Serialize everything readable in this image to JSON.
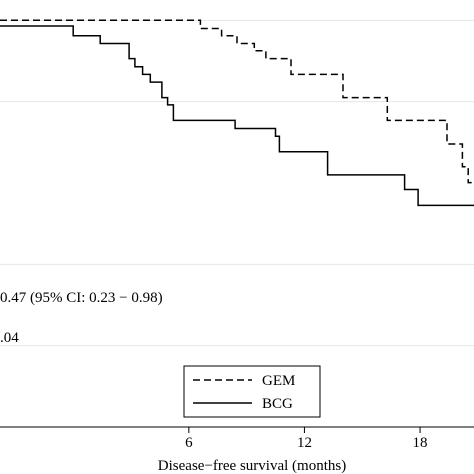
{
  "chart_data": {
    "type": "line",
    "subtype": "kaplan-meier step plot",
    "title": "",
    "xlabel": "Disease−free survival (months)",
    "ylabel": "",
    "xlim": [
      -3.8,
      20.8
    ],
    "ylim": [
      0.0,
      1.05
    ],
    "x_ticks": [
      6,
      12,
      18
    ],
    "y_gridlines": [
      0.2,
      0.4,
      0.8,
      1.0
    ],
    "grid": true,
    "legend_position": "bottom-right",
    "series": [
      {
        "name": "GEM",
        "line_style": "dashed",
        "color": "#000000",
        "steps": [
          [
            -3.8,
            1.0
          ],
          [
            6.6,
            1.0
          ],
          [
            6.6,
            0.98
          ],
          [
            7.7,
            0.98
          ],
          [
            7.7,
            0.962
          ],
          [
            8.5,
            0.962
          ],
          [
            8.5,
            0.943
          ],
          [
            9.4,
            0.943
          ],
          [
            9.4,
            0.925
          ],
          [
            10.0,
            0.925
          ],
          [
            10.0,
            0.906
          ],
          [
            11.3,
            0.906
          ],
          [
            11.3,
            0.867
          ],
          [
            14.0,
            0.867
          ],
          [
            14.0,
            0.81
          ],
          [
            16.3,
            0.81
          ],
          [
            16.3,
            0.754
          ],
          [
            19.4,
            0.754
          ],
          [
            19.4,
            0.696
          ],
          [
            20.2,
            0.696
          ],
          [
            20.2,
            0.64
          ],
          [
            20.5,
            0.64
          ],
          [
            20.5,
            0.601
          ],
          [
            20.8,
            0.601
          ]
        ]
      },
      {
        "name": "BCG",
        "line_style": "solid",
        "color": "#000000",
        "steps": [
          [
            -3.8,
            0.986
          ],
          [
            0.0,
            0.986
          ],
          [
            0.0,
            0.962
          ],
          [
            1.4,
            0.962
          ],
          [
            1.4,
            0.943
          ],
          [
            2.9,
            0.943
          ],
          [
            2.9,
            0.906
          ],
          [
            3.2,
            0.906
          ],
          [
            3.2,
            0.886
          ],
          [
            3.6,
            0.886
          ],
          [
            3.6,
            0.867
          ],
          [
            4.0,
            0.867
          ],
          [
            4.0,
            0.848
          ],
          [
            4.6,
            0.848
          ],
          [
            4.6,
            0.81
          ],
          [
            4.9,
            0.81
          ],
          [
            4.9,
            0.792
          ],
          [
            5.2,
            0.792
          ],
          [
            5.2,
            0.754
          ],
          [
            8.4,
            0.754
          ],
          [
            8.4,
            0.734
          ],
          [
            10.5,
            0.734
          ],
          [
            10.5,
            0.715
          ],
          [
            10.7,
            0.715
          ],
          [
            10.7,
            0.677
          ],
          [
            13.2,
            0.677
          ],
          [
            13.2,
            0.62
          ],
          [
            17.2,
            0.62
          ],
          [
            17.2,
            0.584
          ],
          [
            17.9,
            0.584
          ],
          [
            17.9,
            0.545
          ],
          [
            20.8,
            0.545
          ]
        ]
      }
    ],
    "annotations": [
      "0.47 (95% CI: 0.23 − 0.98)",
      ".04"
    ]
  }
}
